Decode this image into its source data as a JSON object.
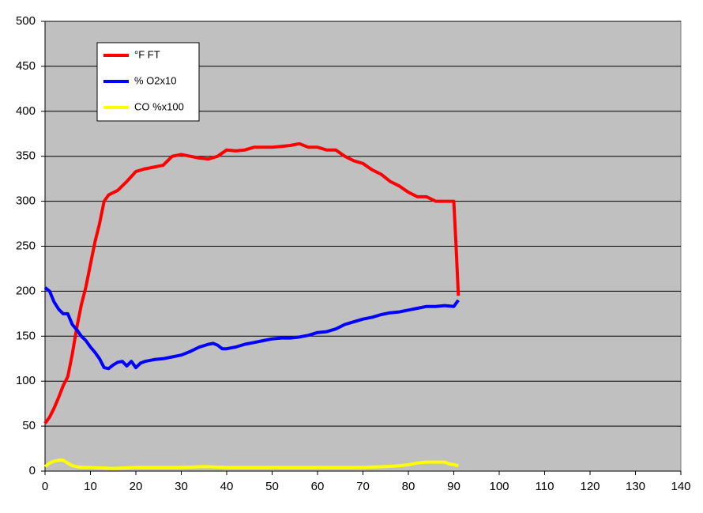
{
  "chart_data": {
    "type": "line",
    "xlim": [
      0,
      140
    ],
    "xticks": [
      0,
      10,
      20,
      30,
      40,
      50,
      60,
      70,
      80,
      90,
      100,
      110,
      120,
      130,
      140
    ],
    "ylim": [
      0,
      500
    ],
    "yticks": [
      0,
      50,
      100,
      150,
      200,
      250,
      300,
      350,
      400,
      450,
      500
    ],
    "grid": true,
    "legend": "top-left",
    "series": [
      {
        "name": "°F FT",
        "color": "#ff0000",
        "x": [
          0,
          1,
          2,
          3,
          4,
          5,
          6,
          7,
          8,
          9,
          10,
          11,
          12,
          13,
          14,
          16,
          18,
          20,
          22,
          24,
          26,
          28,
          30,
          32,
          34,
          36,
          38,
          40,
          42,
          44,
          46,
          48,
          50,
          52,
          54,
          56,
          58,
          60,
          62,
          64,
          66,
          68,
          70,
          72,
          74,
          76,
          78,
          80,
          82,
          84,
          86,
          88,
          90,
          90.5,
          91
        ],
        "values": [
          53,
          60,
          70,
          82,
          95,
          105,
          130,
          160,
          185,
          205,
          230,
          255,
          275,
          300,
          307,
          312,
          322,
          333,
          336,
          338,
          340,
          350,
          352,
          350,
          348,
          347,
          350,
          357,
          356,
          357,
          360,
          360,
          360,
          361,
          362,
          364,
          360,
          360,
          357,
          357,
          350,
          345,
          342,
          335,
          330,
          322,
          317,
          310,
          305,
          305,
          300,
          300,
          300,
          250,
          195
        ]
      },
      {
        "name": "% O2x10",
        "color": "#0000ff",
        "x": [
          0,
          1,
          2,
          3,
          4,
          5,
          6,
          7,
          8,
          9,
          10,
          11,
          12,
          13,
          14,
          15,
          16,
          17,
          18,
          19,
          20,
          21,
          22,
          24,
          26,
          28,
          30,
          32,
          34,
          36,
          37,
          38,
          39,
          40,
          42,
          44,
          46,
          48,
          50,
          52,
          54,
          56,
          58,
          60,
          62,
          64,
          66,
          68,
          70,
          72,
          74,
          76,
          78,
          80,
          82,
          84,
          86,
          88,
          90,
          91
        ],
        "values": [
          204,
          200,
          188,
          180,
          175,
          175,
          163,
          157,
          150,
          145,
          138,
          132,
          125,
          115,
          114,
          118,
          121,
          122,
          117,
          122,
          115,
          120,
          122,
          124,
          125,
          127,
          129,
          133,
          138,
          141,
          142,
          140,
          136,
          136,
          138,
          141,
          143,
          145,
          147,
          148,
          148,
          149,
          151,
          154,
          155,
          158,
          163,
          166,
          169,
          171,
          174,
          176,
          177,
          179,
          181,
          183,
          183,
          184,
          183,
          190
        ]
      },
      {
        "name": "CO %x100",
        "color": "#ffff00",
        "x": [
          0,
          1,
          2,
          3,
          4,
          5,
          6,
          7,
          8,
          10,
          15,
          20,
          25,
          30,
          35,
          40,
          45,
          50,
          55,
          60,
          65,
          70,
          75,
          78,
          80,
          82,
          84,
          86,
          88,
          89,
          90,
          91
        ],
        "values": [
          5,
          9,
          11,
          12,
          12,
          9,
          6,
          5,
          4,
          4,
          3,
          4,
          4,
          4,
          5,
          4,
          4,
          4,
          4,
          4,
          4,
          4,
          5,
          6,
          7,
          9,
          10,
          10,
          10,
          8,
          7,
          6
        ]
      }
    ]
  }
}
